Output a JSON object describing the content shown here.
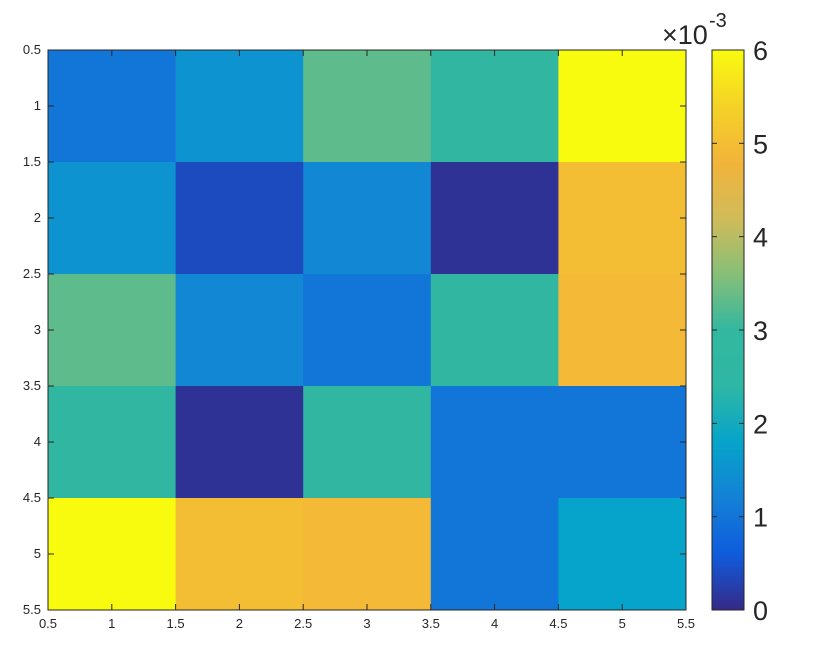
{
  "chart_data": {
    "type": "heatmap",
    "title": "",
    "xlabel": "",
    "ylabel": "",
    "colormap": "parula",
    "xlim": [
      0.5,
      5.5
    ],
    "ylim": [
      0.5,
      5.5
    ],
    "y_reversed": true,
    "xticks": [
      "0.5",
      "1",
      "1.5",
      "2",
      "2.5",
      "3",
      "3.5",
      "4",
      "4.5",
      "5",
      "5.5"
    ],
    "yticks": [
      "0.5",
      "1",
      "1.5",
      "2",
      "2.5",
      "3",
      "3.5",
      "4",
      "4.5",
      "5",
      "5.5"
    ],
    "color_limits": [
      0,
      0.006
    ],
    "colorbar": {
      "ticks": [
        "0",
        "1",
        "2",
        "3",
        "4",
        "5",
        "6"
      ],
      "exponent_multiplier": "×10",
      "exponent_power": "-3"
    },
    "values": [
      [
        0.001,
        0.0015,
        0.0033,
        0.0028,
        0.006
      ],
      [
        0.0015,
        0.0004,
        0.0013,
        0.0001,
        0.005
      ],
      [
        0.0033,
        0.0013,
        0.001,
        0.0028,
        0.0049
      ],
      [
        0.0028,
        0.0001,
        0.0028,
        0.001,
        0.001
      ],
      [
        0.006,
        0.005,
        0.0049,
        0.001,
        0.0018
      ]
    ]
  }
}
